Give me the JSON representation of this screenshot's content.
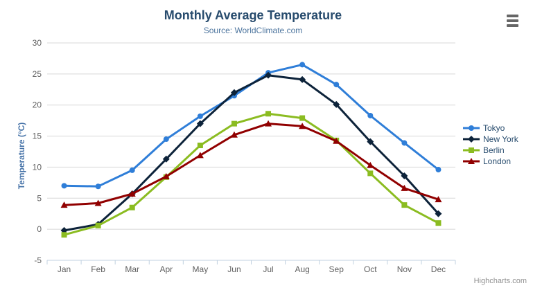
{
  "credit": {
    "label": "Highcharts.com"
  },
  "context_menu": {
    "icon": "hamburger-menu-icon"
  },
  "chart_data": {
    "type": "line",
    "title": "Monthly Average Temperature",
    "subtitle": "Source: WorldClimate.com",
    "xlabel": "",
    "ylabel": "Temperature (°C)",
    "categories": [
      "Jan",
      "Feb",
      "Mar",
      "Apr",
      "May",
      "Jun",
      "Jul",
      "Aug",
      "Sep",
      "Oct",
      "Nov",
      "Dec"
    ],
    "ylim": [
      -5,
      30
    ],
    "yticks": [
      -5,
      0,
      5,
      10,
      15,
      20,
      25,
      30
    ],
    "grid": true,
    "legend_position": "right",
    "series": [
      {
        "name": "Tokyo",
        "color": "#2f7ed8",
        "marker": "circle",
        "values": [
          7.0,
          6.9,
          9.5,
          14.5,
          18.2,
          21.5,
          25.2,
          26.5,
          23.3,
          18.3,
          13.9,
          9.6
        ]
      },
      {
        "name": "New York",
        "color": "#0d233a",
        "marker": "diamond",
        "values": [
          -0.2,
          0.8,
          5.7,
          11.3,
          17.0,
          22.0,
          24.8,
          24.1,
          20.1,
          14.1,
          8.6,
          2.5
        ]
      },
      {
        "name": "Berlin",
        "color": "#8bbc21",
        "marker": "square",
        "values": [
          -0.9,
          0.6,
          3.5,
          8.4,
          13.5,
          17.0,
          18.6,
          17.9,
          14.3,
          9.0,
          3.9,
          1.0
        ]
      },
      {
        "name": "London",
        "color": "#910000",
        "marker": "triangle",
        "values": [
          3.9,
          4.2,
          5.7,
          8.5,
          11.9,
          15.2,
          17.0,
          16.6,
          14.2,
          10.3,
          6.6,
          4.8
        ]
      }
    ],
    "colors": {
      "title": "#274b6d",
      "subtitle": "#4d759e",
      "axis_title": "#4572a7",
      "tick_label": "#606060",
      "grid_line": "#d8d8d8",
      "axis_line": "#c0d0e0",
      "legend_text": "#274b6d",
      "credit": "#909090",
      "background": "#ffffff"
    }
  }
}
